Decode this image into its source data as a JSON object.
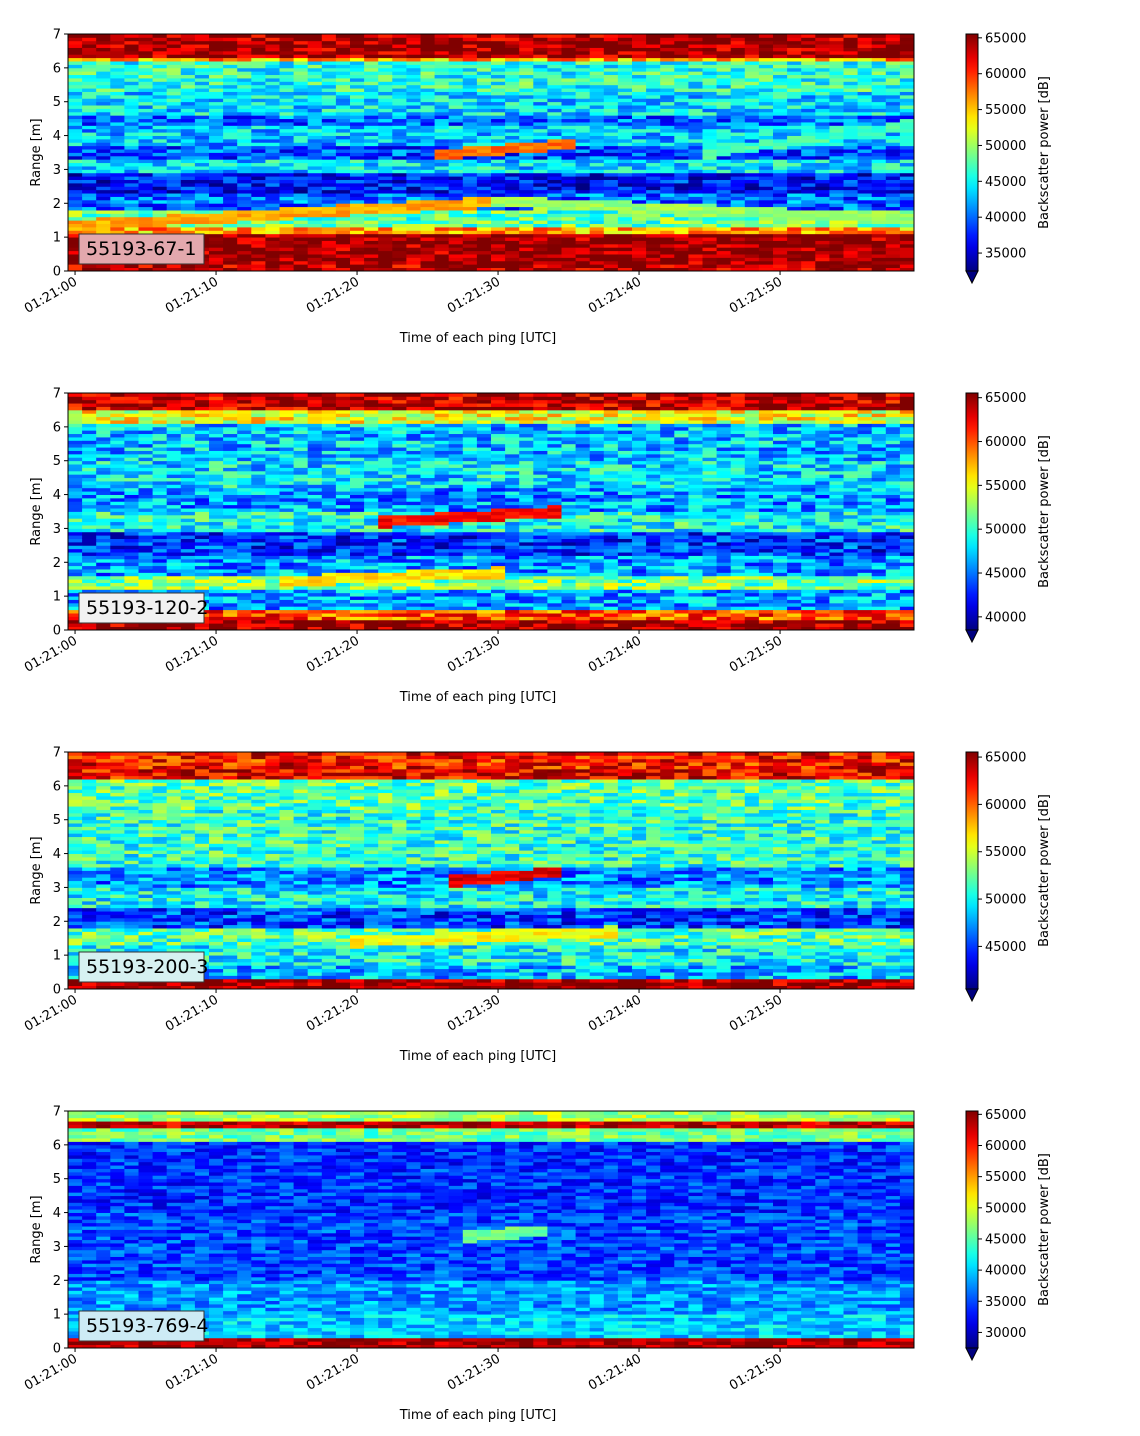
{
  "chart_data": [
    {
      "type": "heatmap",
      "label": "55193-67-1",
      "label_box_color": "#e3a8ad",
      "xlabel": "Time of each ping [UTC]",
      "ylabel": "Range [m]",
      "xticks": [
        "01:21:00",
        "01:21:10",
        "01:21:20",
        "01:21:30",
        "01:21:40",
        "01:21:50"
      ],
      "xtick_seconds": [
        0,
        10,
        20,
        30,
        40,
        50
      ],
      "xlim_seconds": [
        -0.5,
        59.5
      ],
      "ylim": [
        0,
        7
      ],
      "yticks": [
        0,
        1,
        2,
        3,
        4,
        5,
        6,
        7
      ],
      "colorbar_label": "Backscatter power [dB]",
      "colorbar_ticks": [
        35000,
        40000,
        45000,
        50000,
        55000,
        60000,
        65000
      ],
      "vmin": 32500,
      "vmax": 65535,
      "colormap": "jet",
      "colorbar_extend": "min",
      "bands": [
        {
          "y": [
            0.0,
            0.25
          ],
          "value": 64000
        },
        {
          "y": [
            0.25,
            1.1
          ],
          "value": 65000
        },
        {
          "y": [
            1.1,
            1.3
          ],
          "value": 56000
        },
        {
          "y": [
            1.3,
            1.8
          ],
          "value": 48000
        },
        {
          "y": [
            1.8,
            2.3
          ],
          "value": 40000
        },
        {
          "y": [
            2.3,
            2.9
          ],
          "value": 37000
        },
        {
          "y": [
            2.9,
            3.3
          ],
          "value": 44000
        },
        {
          "y": [
            3.3,
            3.7
          ],
          "value": 39000
        },
        {
          "y": [
            3.7,
            4.3
          ],
          "value": 43000
        },
        {
          "y": [
            4.3,
            4.6
          ],
          "value": 40000
        },
        {
          "y": [
            4.6,
            5.3
          ],
          "value": 44000
        },
        {
          "y": [
            5.3,
            6.2
          ],
          "value": 46000
        },
        {
          "y": [
            6.2,
            6.3
          ],
          "value": 56000
        },
        {
          "y": [
            6.3,
            7.0
          ],
          "value": 64500
        }
      ],
      "noise": 9000,
      "echoes": [
        {
          "t": [
            0,
            30
          ],
          "y": [
            1.35,
            2.05
          ],
          "value": 56000
        },
        {
          "t": [
            30,
            59
          ],
          "y": [
            2.05,
            1.55
          ],
          "value": 50000
        },
        {
          "t": [
            26,
            35
          ],
          "y": [
            3.45,
            3.75
          ],
          "value": 58000
        },
        {
          "t": [
            45,
            59
          ],
          "y": [
            3.5,
            4.3
          ],
          "value": 47000
        }
      ]
    },
    {
      "type": "heatmap",
      "label": "55193-120-2",
      "label_box_color": "#f1f1f1",
      "xlabel": "Time of each ping [UTC]",
      "ylabel": "Range [m]",
      "xticks": [
        "01:21:00",
        "01:21:10",
        "01:21:20",
        "01:21:30",
        "01:21:40",
        "01:21:50"
      ],
      "xtick_seconds": [
        0,
        10,
        20,
        30,
        40,
        50
      ],
      "xlim_seconds": [
        -0.5,
        59.5
      ],
      "ylim": [
        0,
        7
      ],
      "yticks": [
        0,
        1,
        2,
        3,
        4,
        5,
        6,
        7
      ],
      "colorbar_label": "Backscatter power [dB]",
      "colorbar_ticks": [
        40000,
        45000,
        50000,
        55000,
        60000,
        65000
      ],
      "vmin": 38500,
      "vmax": 65535,
      "colormap": "jet",
      "colorbar_extend": "min",
      "bands": [
        {
          "y": [
            0.0,
            0.35
          ],
          "value": 65000
        },
        {
          "y": [
            0.35,
            0.6
          ],
          "value": 60000
        },
        {
          "y": [
            0.6,
            1.2
          ],
          "value": 46000
        },
        {
          "y": [
            1.2,
            1.6
          ],
          "value": 52000
        },
        {
          "y": [
            1.6,
            2.2
          ],
          "value": 46000
        },
        {
          "y": [
            2.2,
            2.9
          ],
          "value": 43000
        },
        {
          "y": [
            2.9,
            3.5
          ],
          "value": 49000
        },
        {
          "y": [
            3.5,
            4.2
          ],
          "value": 46000
        },
        {
          "y": [
            4.2,
            5.0
          ],
          "value": 48000
        },
        {
          "y": [
            5.0,
            6.1
          ],
          "value": 47000
        },
        {
          "y": [
            6.1,
            6.5
          ],
          "value": 55000
        },
        {
          "y": [
            6.5,
            7.0
          ],
          "value": 64000
        }
      ],
      "noise": 8000,
      "echoes": [
        {
          "t": [
            15,
            30
          ],
          "y": [
            1.45,
            1.7
          ],
          "value": 56000
        },
        {
          "t": [
            22,
            34
          ],
          "y": [
            3.2,
            3.5
          ],
          "value": 62000
        }
      ]
    },
    {
      "type": "heatmap",
      "label": "55193-200-3",
      "label_box_color": "#d6f1f1",
      "xlabel": "Time of each ping [UTC]",
      "ylabel": "Range [m]",
      "xticks": [
        "01:21:00",
        "01:21:10",
        "01:21:20",
        "01:21:30",
        "01:21:40",
        "01:21:50"
      ],
      "xtick_seconds": [
        0,
        10,
        20,
        30,
        40,
        50
      ],
      "xlim_seconds": [
        -0.5,
        59.5
      ],
      "ylim": [
        0,
        7
      ],
      "yticks": [
        0,
        1,
        2,
        3,
        4,
        5,
        6,
        7
      ],
      "colorbar_label": "Backscatter power [dB]",
      "colorbar_ticks": [
        45000,
        50000,
        55000,
        60000,
        65000
      ],
      "vmin": 40500,
      "vmax": 65535,
      "colormap": "jet",
      "colorbar_extend": "min",
      "bands": [
        {
          "y": [
            0.0,
            0.3
          ],
          "value": 65000
        },
        {
          "y": [
            0.3,
            0.7
          ],
          "value": 48000
        },
        {
          "y": [
            0.7,
            1.3
          ],
          "value": 50000
        },
        {
          "y": [
            1.3,
            1.8
          ],
          "value": 52000
        },
        {
          "y": [
            1.8,
            2.4
          ],
          "value": 45000
        },
        {
          "y": [
            2.4,
            3.0
          ],
          "value": 50000
        },
        {
          "y": [
            3.0,
            3.6
          ],
          "value": 47000
        },
        {
          "y": [
            3.6,
            5.3
          ],
          "value": 51000
        },
        {
          "y": [
            5.3,
            6.2
          ],
          "value": 52000
        },
        {
          "y": [
            6.2,
            6.5
          ],
          "value": 63000
        },
        {
          "y": [
            6.5,
            7.0
          ],
          "value": 62000
        }
      ],
      "noise": 7000,
      "echoes": [
        {
          "t": [
            20,
            38
          ],
          "y": [
            1.4,
            1.7
          ],
          "value": 56000
        },
        {
          "t": [
            27,
            34
          ],
          "y": [
            3.2,
            3.45
          ],
          "value": 63000
        }
      ]
    },
    {
      "type": "heatmap",
      "label": "55193-769-4",
      "label_box_color": "#cdebf5",
      "xlabel": "Time of each ping [UTC]",
      "ylabel": "Range [m]",
      "xticks": [
        "01:21:00",
        "01:21:10",
        "01:21:20",
        "01:21:30",
        "01:21:40",
        "01:21:50"
      ],
      "xtick_seconds": [
        0,
        10,
        20,
        30,
        40,
        50
      ],
      "xlim_seconds": [
        -0.5,
        59.5
      ],
      "ylim": [
        0,
        7
      ],
      "yticks": [
        0,
        1,
        2,
        3,
        4,
        5,
        6,
        7
      ],
      "colorbar_label": "Backscatter power [dB]",
      "colorbar_ticks": [
        30000,
        35000,
        40000,
        45000,
        50000,
        55000,
        60000,
        65000
      ],
      "vmin": 27500,
      "vmax": 65535,
      "colormap": "jet",
      "colorbar_extend": "min",
      "bands": [
        {
          "y": [
            0.0,
            0.3
          ],
          "value": 64000
        },
        {
          "y": [
            0.3,
            1.0
          ],
          "value": 40000
        },
        {
          "y": [
            1.0,
            2.0
          ],
          "value": 38000
        },
        {
          "y": [
            2.0,
            4.0
          ],
          "value": 35000
        },
        {
          "y": [
            4.0,
            6.1
          ],
          "value": 34000
        },
        {
          "y": [
            6.1,
            6.5
          ],
          "value": 46000
        },
        {
          "y": [
            6.5,
            6.75
          ],
          "value": 63000
        },
        {
          "y": [
            6.75,
            7.0
          ],
          "value": 48000
        }
      ],
      "noise": 7500,
      "echoes": [
        {
          "t": [
            28,
            33
          ],
          "y": [
            3.3,
            3.45
          ],
          "value": 46000
        }
      ]
    }
  ]
}
